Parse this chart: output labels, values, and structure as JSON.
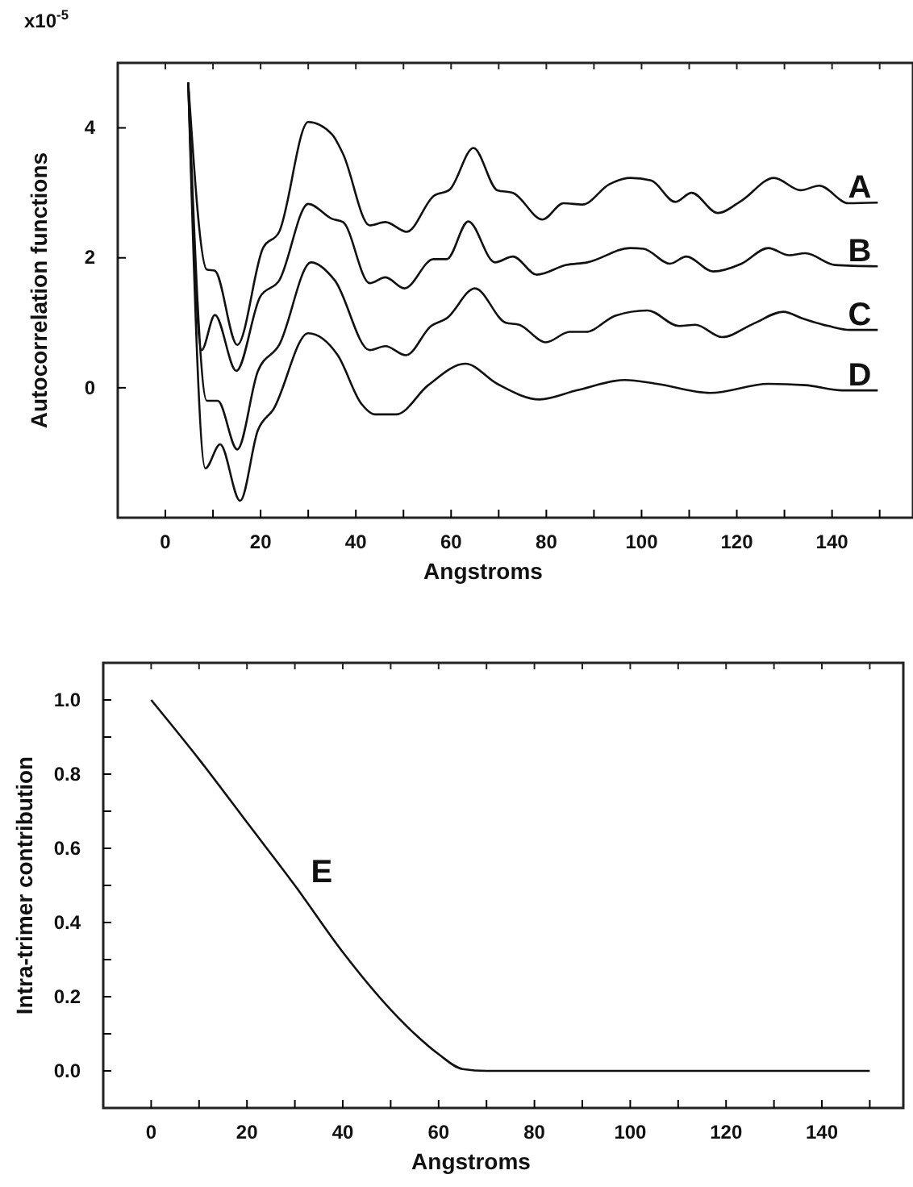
{
  "chart_data": [
    {
      "type": "line",
      "ylabel": "Autocorrelation functions",
      "xlabel": "Angstroms",
      "xlim": [
        -10,
        157
      ],
      "ylim": [
        -2,
        5
      ],
      "xticks": [
        0,
        {
          "value": 10,
          "label": null
        },
        20,
        {
          "value": 30,
          "label": null
        },
        40,
        {
          "value": 50,
          "label": null
        },
        60,
        {
          "value": 70,
          "label": null
        },
        80,
        {
          "value": 90,
          "label": null
        },
        100,
        {
          "value": 110,
          "label": null
        },
        120,
        {
          "value": 130,
          "label": null
        },
        140,
        {
          "value": 150,
          "label": null
        }
      ],
      "yticks": [
        0,
        2,
        4
      ],
      "grid": false,
      "marker": "none",
      "line_style": "solid",
      "annotations": [
        "x10$^{-5}$"
      ],
      "series": [
        {
          "name": "A",
          "color": "#111111",
          "x": [
            4.8,
            8.7,
            10.4,
            15.1,
            20.5,
            23.9,
            30,
            35,
            37.3,
            42.9,
            46.2,
            50.7,
            56.3,
            59.7,
            64.7,
            69.7,
            73,
            79.2,
            83.6,
            87.6,
            93.2,
            97.6,
            102,
            107.1,
            110.5,
            116,
            121,
            127.8,
            133.4,
            137.3,
            143.4,
            149.6
          ],
          "values": [
            4.7,
            1.82,
            1.8,
            0.66,
            2.15,
            2.4,
            4.09,
            3.9,
            3.6,
            2.5,
            2.55,
            2.4,
            2.95,
            3.05,
            3.69,
            3.04,
            3.0,
            2.59,
            2.84,
            2.82,
            3.13,
            3.23,
            3.19,
            2.86,
            3.0,
            2.69,
            2.88,
            3.23,
            3.04,
            3.11,
            2.84,
            2.85
          ]
        },
        {
          "name": "B",
          "color": "#111111",
          "x": [
            4.8,
            7.6,
            10.4,
            14.9,
            19.9,
            23.9,
            30,
            35,
            37.3,
            42.9,
            46.2,
            50.2,
            56.3,
            59.1,
            63.6,
            69.2,
            73,
            78,
            84.2,
            88.6,
            97.6,
            100.4,
            106,
            109.4,
            115,
            121,
            126.6,
            131,
            134.4,
            140.6,
            149.6
          ],
          "values": [
            4.7,
            0.58,
            1.12,
            0.26,
            1.4,
            1.65,
            2.83,
            2.6,
            2.55,
            1.61,
            1.7,
            1.53,
            1.98,
            1.98,
            2.56,
            1.93,
            2.02,
            1.74,
            1.89,
            1.93,
            2.15,
            2.14,
            1.91,
            2.02,
            1.79,
            1.91,
            2.15,
            2.04,
            2.07,
            1.89,
            1.87
          ]
        },
        {
          "name": "C",
          "color": "#111111",
          "x": [
            4.8,
            8.7,
            11,
            15.1,
            19.4,
            23.9,
            30.6,
            35.6,
            42.9,
            46.2,
            50.5,
            55.8,
            59.1,
            65,
            71.5,
            74.3,
            79.9,
            84.9,
            88.3,
            94.5,
            101.2,
            107.9,
            111.3,
            116.9,
            123.6,
            129.8,
            133.7,
            139.3,
            143.8,
            149.6
          ],
          "values": [
            4.7,
            -0.2,
            -0.2,
            -0.95,
            0.25,
            0.66,
            1.93,
            1.65,
            0.58,
            0.64,
            0.5,
            0.95,
            1.07,
            1.53,
            1.0,
            0.97,
            0.7,
            0.86,
            0.86,
            1.11,
            1.19,
            0.95,
            0.97,
            0.78,
            0.99,
            1.17,
            1.07,
            0.95,
            0.89,
            0.89
          ]
        },
        {
          "name": "D",
          "color": "#111111",
          "x": [
            4.8,
            8.4,
            11.5,
            15.7,
            19.4,
            22.7,
            30,
            36.2,
            41.2,
            44,
            48.5,
            55.2,
            63,
            69.7,
            78.6,
            86.4,
            96.5,
            103.2,
            114.4,
            126.6,
            134.4,
            142.2,
            149.6
          ],
          "values": [
            4.7,
            -1.24,
            -0.87,
            -1.74,
            -0.66,
            -0.33,
            0.84,
            0.5,
            -0.25,
            -0.41,
            -0.41,
            0.04,
            0.37,
            0.06,
            -0.18,
            -0.04,
            0.12,
            0.06,
            -0.08,
            0.06,
            0.04,
            -0.04,
            -0.04
          ]
        }
      ]
    },
    {
      "type": "line",
      "ylabel": "Intra-trimer contribution",
      "xlabel": "Angstroms",
      "xlim": [
        -10,
        157
      ],
      "ylim": [
        -0.1,
        1.1
      ],
      "xticks": [
        0,
        {
          "value": 10,
          "label": null
        },
        20,
        {
          "value": 30,
          "label": null
        },
        40,
        {
          "value": 50,
          "label": null
        },
        60,
        {
          "value": 70,
          "label": null
        },
        80,
        {
          "value": 90,
          "label": null
        },
        100,
        {
          "value": 110,
          "label": null
        },
        120,
        {
          "value": 130,
          "label": null
        },
        140,
        {
          "value": 150,
          "label": null
        }
      ],
      "yticks": [
        {
          "value": 0,
          "label": "0.0"
        },
        {
          "value": 0.1,
          "label": null
        },
        0.2,
        {
          "value": 0.3,
          "label": null
        },
        0.4,
        {
          "value": 0.5,
          "label": null
        },
        0.6,
        {
          "value": 0.7,
          "label": null
        },
        0.8,
        {
          "value": 0.9,
          "label": null
        },
        {
          "value": 1,
          "label": "1.0"
        }
      ],
      "grid": false,
      "marker": "none",
      "line_style": "solid",
      "series": [
        {
          "name": "E",
          "color": "#111111",
          "x": [
            0,
            10,
            20,
            30,
            40,
            50,
            55,
            60,
            65,
            70,
            150
          ],
          "values": [
            1.0,
            0.84,
            0.67,
            0.5,
            0.32,
            0.165,
            0.1,
            0.045,
            0.005,
            0,
            0
          ]
        }
      ]
    }
  ]
}
